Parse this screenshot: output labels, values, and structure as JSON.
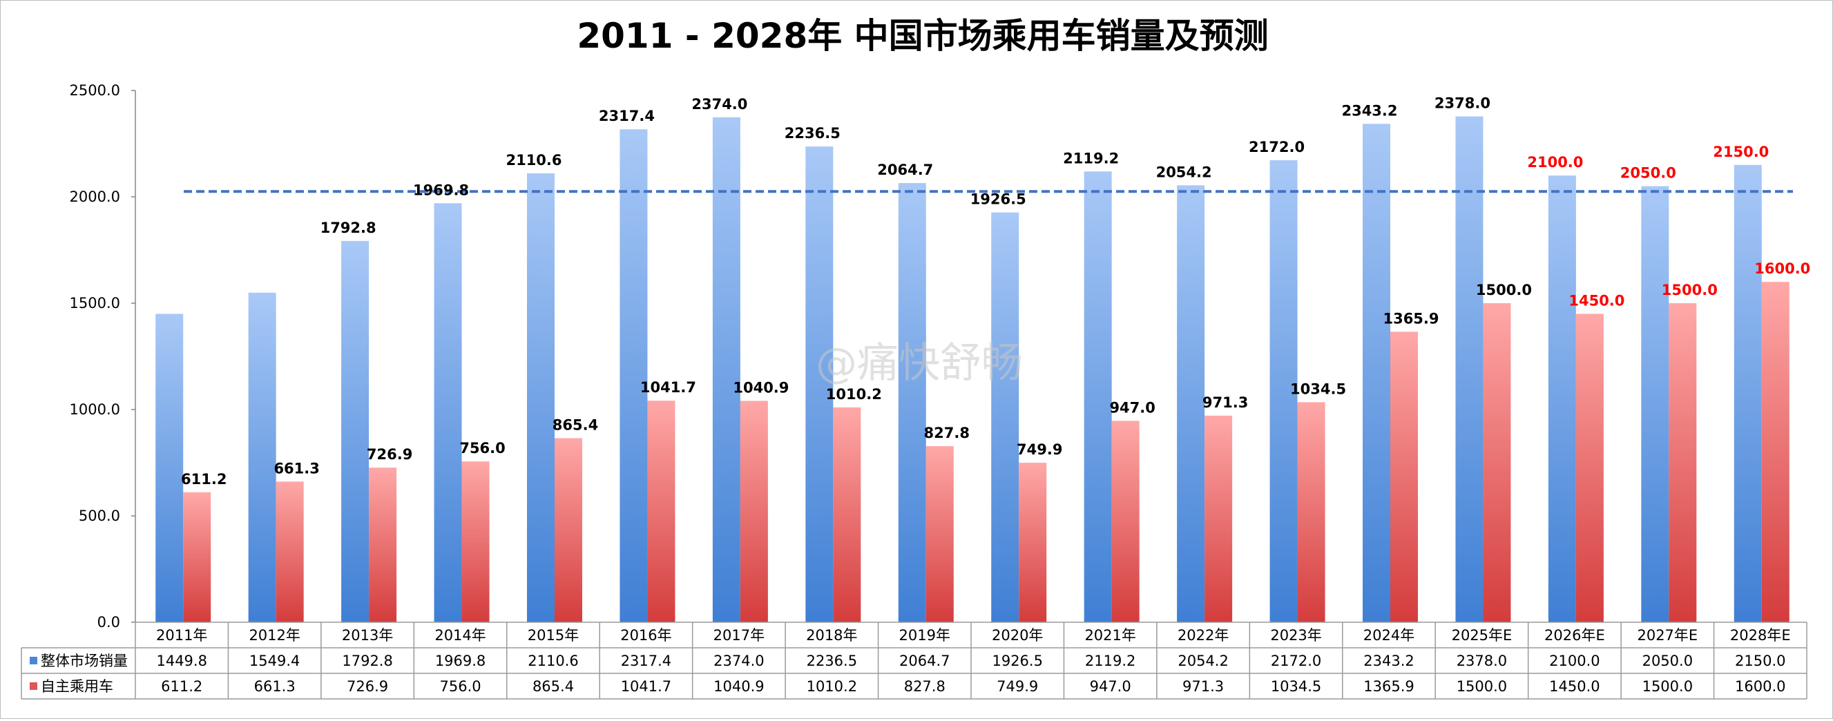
{
  "chart_data": {
    "type": "bar",
    "title": "2011 - 2028年 中国市场乘用车销量及预测",
    "categories": [
      "2011年",
      "2012年",
      "2013年",
      "2014年",
      "2015年",
      "2016年",
      "2017年",
      "2018年",
      "2019年",
      "2020年",
      "2021年",
      "2022年",
      "2023年",
      "2024年",
      "2025年E",
      "2026年E",
      "2027年E",
      "2028年E"
    ],
    "series": [
      {
        "name": "整体市场销量",
        "color": "#4a86d8",
        "values": [
          1449.8,
          1549.4,
          1792.8,
          1969.8,
          2110.6,
          2317.4,
          2374.0,
          2236.5,
          2064.7,
          1926.5,
          2119.2,
          2054.2,
          2172.0,
          2343.2,
          2378.0,
          2100.0,
          2050.0,
          2150.0
        ],
        "value_labels": [
          "",
          "",
          "1792.8",
          "1969.8",
          "2110.6",
          "2317.4",
          "2374.0",
          "2236.5",
          "2064.7",
          "1926.5",
          "2119.2",
          "2054.2",
          "2172.0",
          "2343.2",
          "2378.0",
          "2100.0",
          "2050.0",
          "2150.0"
        ],
        "table_labels": [
          "1449.8",
          "1549.4",
          "1792.8",
          "1969.8",
          "2110.6",
          "2317.4",
          "2374.0",
          "2236.5",
          "2064.7",
          "1926.5",
          "2119.2",
          "2054.2",
          "2172.0",
          "2343.2",
          "2378.0",
          "2100.0",
          "2050.0",
          "2150.0"
        ]
      },
      {
        "name": "自主乘用车",
        "color": "#e05555",
        "values": [
          611.2,
          661.3,
          726.9,
          756.0,
          865.4,
          1041.7,
          1040.9,
          1010.2,
          827.8,
          749.9,
          947.0,
          971.3,
          1034.5,
          1365.9,
          1500.0,
          1450.0,
          1500.0,
          1600.0
        ],
        "value_labels": [
          "611.2",
          "661.3",
          "726.9",
          "756.0",
          "865.4",
          "1041.7",
          "1040.9",
          "1010.2",
          "827.8",
          "749.9",
          "947.0",
          "971.3",
          "1034.5",
          "1365.9",
          "1500.0",
          "1450.0",
          "1500.0",
          "1600.0"
        ],
        "table_labels": [
          "611.2",
          "661.3",
          "726.9",
          "756.0",
          "865.4",
          "1041.7",
          "1040.9",
          "1010.2",
          "827.8",
          "749.9",
          "947.0",
          "971.3",
          "1034.5",
          "1365.9",
          "1500.0",
          "1450.0",
          "1500.0",
          "1600.0"
        ]
      }
    ],
    "ylim": [
      0,
      2500
    ],
    "yticks": [
      "0.0",
      "500.0",
      "1000.0",
      "1500.0",
      "2000.0",
      "2500.0"
    ],
    "ytick_values": [
      0,
      500,
      1000,
      1500,
      2000,
      2500
    ],
    "forecast_from_index": 15,
    "forecast_label_color": "#ff0000",
    "reference_line": {
      "value": 2025,
      "color": "#4472c4",
      "style": "dashed"
    },
    "legend": "data-table",
    "grid": false
  },
  "watermark": "@痛快舒畅"
}
